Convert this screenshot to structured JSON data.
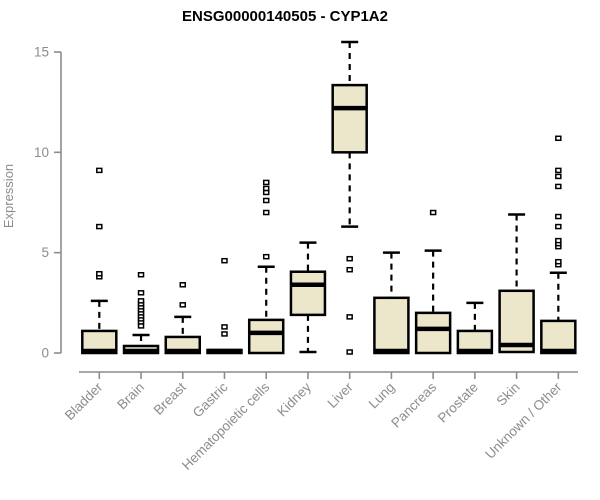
{
  "chart_data": {
    "type": "boxplot",
    "title": "ENSG00000140505 - CYP1A2",
    "ylabel": "Expression",
    "xlabel": "",
    "ylim": [
      0,
      15.5
    ],
    "yticks": [
      0,
      5,
      10,
      15
    ],
    "grid": false,
    "legend": "none",
    "colors": {
      "box_fill": "#ece6ca",
      "box_stroke": "#000000",
      "median": "#000000",
      "whisker": "#000000",
      "axis": "#8c8c8c",
      "tick_text": "#8c8c8c",
      "title_text": "#000000",
      "background": "#ffffff"
    },
    "categories": [
      "Bladder",
      "Brain",
      "Breast",
      "Gastric",
      "Hematopoietic cells",
      "Kidney",
      "Liver",
      "Lung",
      "Pancreas",
      "Prostate",
      "Skin",
      "Unknown / Other"
    ],
    "series": [
      {
        "category": "Bladder",
        "low": 0,
        "q1": 0,
        "median": 0.1,
        "q3": 1.1,
        "high": 2.6,
        "outliers": [
          3.8,
          3.95,
          6.3,
          9.1
        ]
      },
      {
        "category": "Brain",
        "low": 0,
        "q1": 0,
        "median": 0.1,
        "q3": 0.35,
        "high": 0.9,
        "outliers": [
          1.35,
          1.55,
          1.7,
          1.85,
          2.0,
          2.15,
          2.3,
          2.45,
          2.6,
          3.0,
          3.9
        ]
      },
      {
        "category": "Breast",
        "low": 0,
        "q1": 0,
        "median": 0.1,
        "q3": 0.8,
        "high": 1.8,
        "outliers": [
          2.4,
          3.4
        ]
      },
      {
        "category": "Gastric",
        "low": 0,
        "q1": 0,
        "median": 0.1,
        "q3": 0.15,
        "high": 0.15,
        "outliers": [
          0.95,
          1.3,
          4.6
        ]
      },
      {
        "category": "Hematopoietic cells",
        "low": 0,
        "q1": 0,
        "median": 1.0,
        "q3": 1.65,
        "high": 4.3,
        "outliers": [
          4.8,
          7.0,
          7.6,
          8.0,
          8.2,
          8.5
        ]
      },
      {
        "category": "Kidney",
        "low": 0.05,
        "q1": 1.9,
        "median": 3.4,
        "q3": 4.05,
        "high": 5.5,
        "outliers": []
      },
      {
        "category": "Liver",
        "low": 6.3,
        "q1": 10.0,
        "median": 12.2,
        "q3": 13.35,
        "high": 15.5,
        "outliers": [
          0.05,
          1.8,
          4.15,
          4.7
        ]
      },
      {
        "category": "Lung",
        "low": 0,
        "q1": 0,
        "median": 0.1,
        "q3": 2.75,
        "high": 5.0,
        "outliers": []
      },
      {
        "category": "Pancreas",
        "low": 0,
        "q1": 0,
        "median": 1.2,
        "q3": 2.0,
        "high": 5.1,
        "outliers": [
          7.0
        ]
      },
      {
        "category": "Prostate",
        "low": 0,
        "q1": 0,
        "median": 0.1,
        "q3": 1.1,
        "high": 2.5,
        "outliers": []
      },
      {
        "category": "Skin",
        "low": 0.05,
        "q1": 0.05,
        "median": 0.4,
        "q3": 3.1,
        "high": 6.9,
        "outliers": []
      },
      {
        "category": "Unknown / Other",
        "low": 0,
        "q1": 0,
        "median": 0.1,
        "q3": 1.6,
        "high": 4.0,
        "outliers": [
          4.4,
          4.55,
          5.3,
          5.45,
          5.6,
          6.3,
          6.8,
          8.3,
          8.8,
          9.1,
          10.7
        ]
      }
    ]
  }
}
